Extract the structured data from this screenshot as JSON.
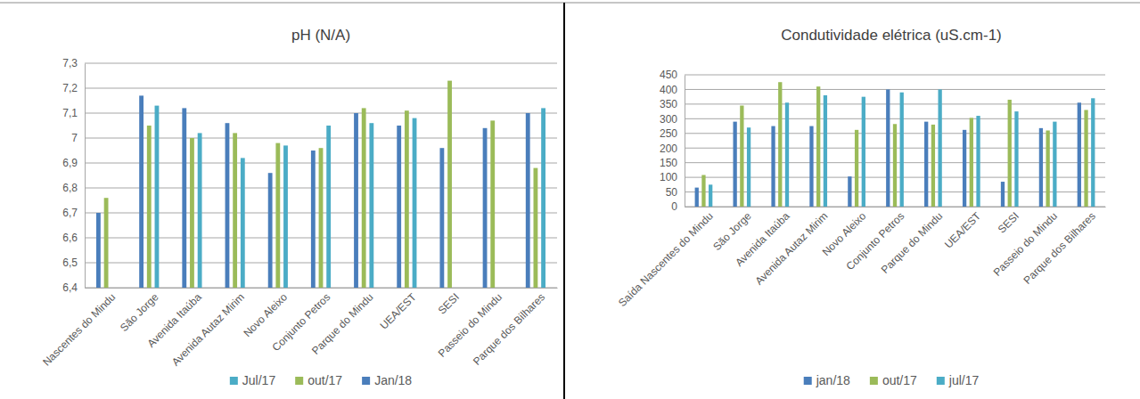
{
  "chart_data": [
    {
      "type": "bar",
      "title": "pH (N/A)",
      "categories": [
        "Nascentes do Mindu",
        "São Jorge",
        "Avenida Itaúba",
        "Avenida Autaz Mirim",
        "Novo Aleixo",
        "Conjunto Petros",
        "Parque do Mindu",
        "UEA/EST",
        "SESI",
        "Passeio do Mindu",
        "Parque dos Bilhares"
      ],
      "series": [
        {
          "name": "Jan/18",
          "color": "#4a7ebb",
          "values": [
            6.7,
            7.17,
            7.12,
            7.06,
            6.86,
            6.95,
            7.1,
            7.05,
            6.96,
            7.04,
            7.1
          ]
        },
        {
          "name": "out/17",
          "color": "#9bbb59",
          "values": [
            6.76,
            7.05,
            7.0,
            7.02,
            6.98,
            6.96,
            7.12,
            7.11,
            7.23,
            7.07,
            6.88
          ]
        },
        {
          "name": "Jul/17",
          "color": "#4bacc6",
          "values": [
            null,
            7.13,
            7.02,
            6.92,
            6.97,
            7.05,
            7.06,
            7.08,
            null,
            null,
            7.12
          ]
        }
      ],
      "ylim": [
        6.4,
        7.3
      ],
      "yticks": [
        {
          "value": 6.4,
          "label": "6,4"
        },
        {
          "value": 6.5,
          "label": "6,5"
        },
        {
          "value": 6.6,
          "label": "6,6"
        },
        {
          "value": 6.7,
          "label": "6,7"
        },
        {
          "value": 6.8,
          "label": "6,8"
        },
        {
          "value": 6.9,
          "label": "6,9"
        },
        7,
        {
          "value": 7.1,
          "label": "7,1"
        },
        {
          "value": 7.2,
          "label": "7,2"
        },
        {
          "value": 7.3,
          "label": "7,3"
        }
      ],
      "grid": true,
      "legend": "bottom"
    },
    {
      "type": "bar",
      "title": "Condutividade elétrica (uS.cm-1)",
      "categories": [
        "Saída Nascentes do Mindu",
        "São Jorge",
        "Avenida Itaúba",
        "Avenida Autaz Mirim",
        "Novo Aleixo",
        "Conjunto Petros",
        "Parque do Mindu",
        "UEA/EST",
        "SESI",
        "Passeio do Mindu",
        "Parque dos Bilhares"
      ],
      "series": [
        {
          "name": "jan/18",
          "color": "#4a7ebb",
          "values": [
            65,
            290,
            275,
            275,
            103,
            400,
            290,
            262,
            85,
            268,
            355
          ]
        },
        {
          "name": "out/17",
          "color": "#9bbb59",
          "values": [
            108,
            345,
            425,
            410,
            262,
            282,
            280,
            303,
            365,
            260,
            330
          ]
        },
        {
          "name": "jul/17",
          "color": "#4bacc6",
          "values": [
            75,
            270,
            355,
            380,
            375,
            390,
            400,
            310,
            325,
            290,
            370
          ]
        }
      ],
      "ylim": [
        0,
        450
      ],
      "yticks": [
        0,
        50,
        100,
        150,
        200,
        250,
        300,
        350,
        400,
        450
      ],
      "grid": true,
      "legend": "bottom"
    }
  ]
}
